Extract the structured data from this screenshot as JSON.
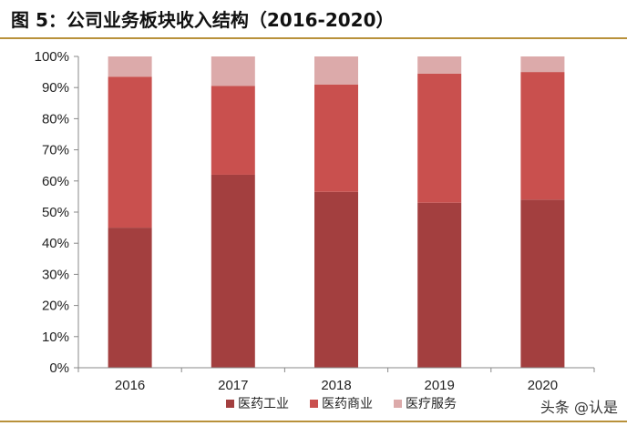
{
  "title": "图 5：公司业务板块收入结构（2016-2020）",
  "watermark": "头条 @认是",
  "chart_data": {
    "type": "bar",
    "stacked": true,
    "percent": true,
    "categories": [
      "2016",
      "2017",
      "2018",
      "2019",
      "2020"
    ],
    "series": [
      {
        "name": "医药工业",
        "color": "#a33f3f",
        "values": [
          45,
          62,
          56.5,
          53,
          54
        ]
      },
      {
        "name": "医药商业",
        "color": "#c9504e",
        "values": [
          48.5,
          28.5,
          34.5,
          41.5,
          41
        ]
      },
      {
        "name": "医疗服务",
        "color": "#dcaaaa",
        "values": [
          6.5,
          9.5,
          9,
          5.5,
          5
        ]
      }
    ],
    "ylim": [
      0,
      100
    ],
    "yticks": [
      "0%",
      "10%",
      "20%",
      "30%",
      "40%",
      "50%",
      "60%",
      "70%",
      "80%",
      "90%",
      "100%"
    ],
    "legend_position": "bottom",
    "grid": false
  }
}
